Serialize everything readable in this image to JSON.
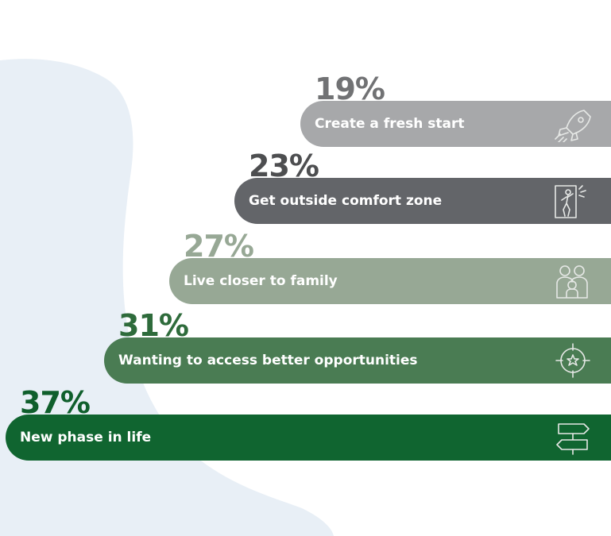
{
  "chart_data": {
    "type": "bar",
    "orientation": "horizontal",
    "title": "",
    "xlabel": "",
    "ylabel": "",
    "xlim": [
      0,
      37
    ],
    "categories": [
      "Create a fresh start",
      "Get outside comfort zone",
      "Live closer to family",
      "Wanting to access better opportunities",
      "New phase in life"
    ],
    "values": [
      19,
      23,
      27,
      31,
      37
    ],
    "value_labels": [
      "19%",
      "23%",
      "27%",
      "31%",
      "37%"
    ],
    "bar_colors": [
      "#a7a8aa",
      "#636569",
      "#97a895",
      "#4a7c53",
      "#106530"
    ],
    "label_colors": [
      "#717274",
      "#4d4e50",
      "#97a895",
      "#2e6b3b",
      "#0f5f2c"
    ],
    "icons": [
      "rocket-icon",
      "person-outside-door-icon",
      "family-icon",
      "target-star-icon",
      "signpost-icon"
    ]
  }
}
